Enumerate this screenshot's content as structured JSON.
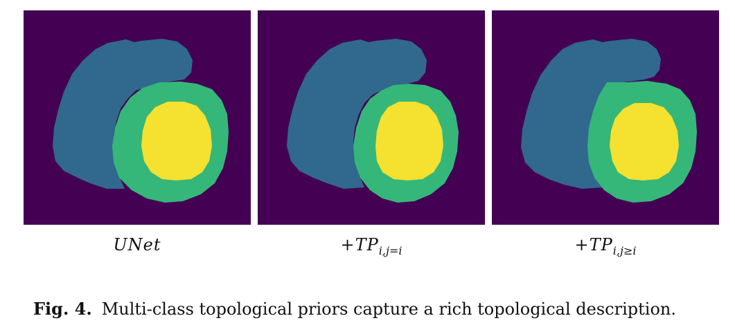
{
  "figure": {
    "panels": [
      {
        "label_main": "UNet",
        "label_sub": ""
      },
      {
        "label_main": "+TP",
        "label_sub": "i,j=i"
      },
      {
        "label_main": "+TP",
        "label_sub": "i,j≥i"
      }
    ],
    "caption_label": "Fig. 4.",
    "caption_text": "Multi-class topological priors capture a rich topological description."
  },
  "colors": {
    "background": "#440154",
    "class_blue": "#31688e",
    "class_green": "#35b779",
    "class_yellow": "#f5e12f"
  }
}
